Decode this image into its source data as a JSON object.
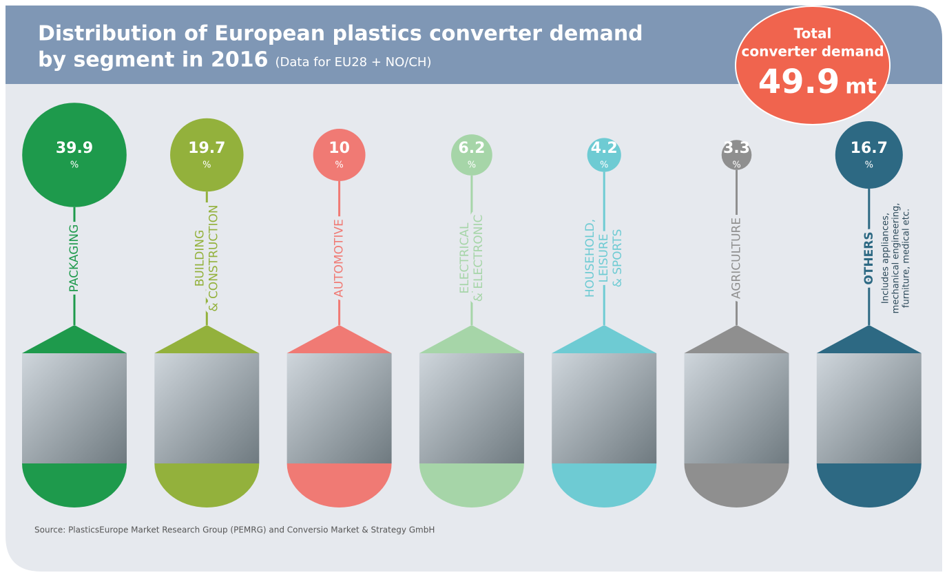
{
  "chart_data": {
    "type": "bubble",
    "title": [
      "Distribution of European plastics converter demand",
      "by segment in 2016"
    ],
    "subtitle": "(Data for EU28 + NO/CH)",
    "total": {
      "label": [
        "Total",
        "converter demand"
      ],
      "value": 49.9,
      "unit": "mt"
    },
    "unit": "%",
    "categories": [
      [
        "PACKAGING"
      ],
      [
        "BUILDING",
        "& CONSTRUCTION"
      ],
      [
        "AUTOMOTIVE"
      ],
      [
        "ELECTRICAL",
        "& ELECTRONIC"
      ],
      [
        "HOUSEHOLD,",
        "LEISURE",
        "& SPORTS"
      ],
      [
        "AGRICULTURE"
      ],
      [
        "OTHERS"
      ]
    ],
    "values": [
      39.9,
      19.7,
      10,
      6.2,
      4.2,
      3.3,
      16.7
    ],
    "colors": [
      "#1e9a4c",
      "#93b13c",
      "#f07a74",
      "#a6d5a8",
      "#6ecbd3",
      "#8f8f8f",
      "#2d6983"
    ],
    "others_note": [
      "Includes appliances,",
      "mechanical engineering,",
      "furniture, medical etc."
    ],
    "source": "Source: PlasticsEurope Market Research Group (PEMRG) and Conversio Market & Strategy GmbH"
  }
}
